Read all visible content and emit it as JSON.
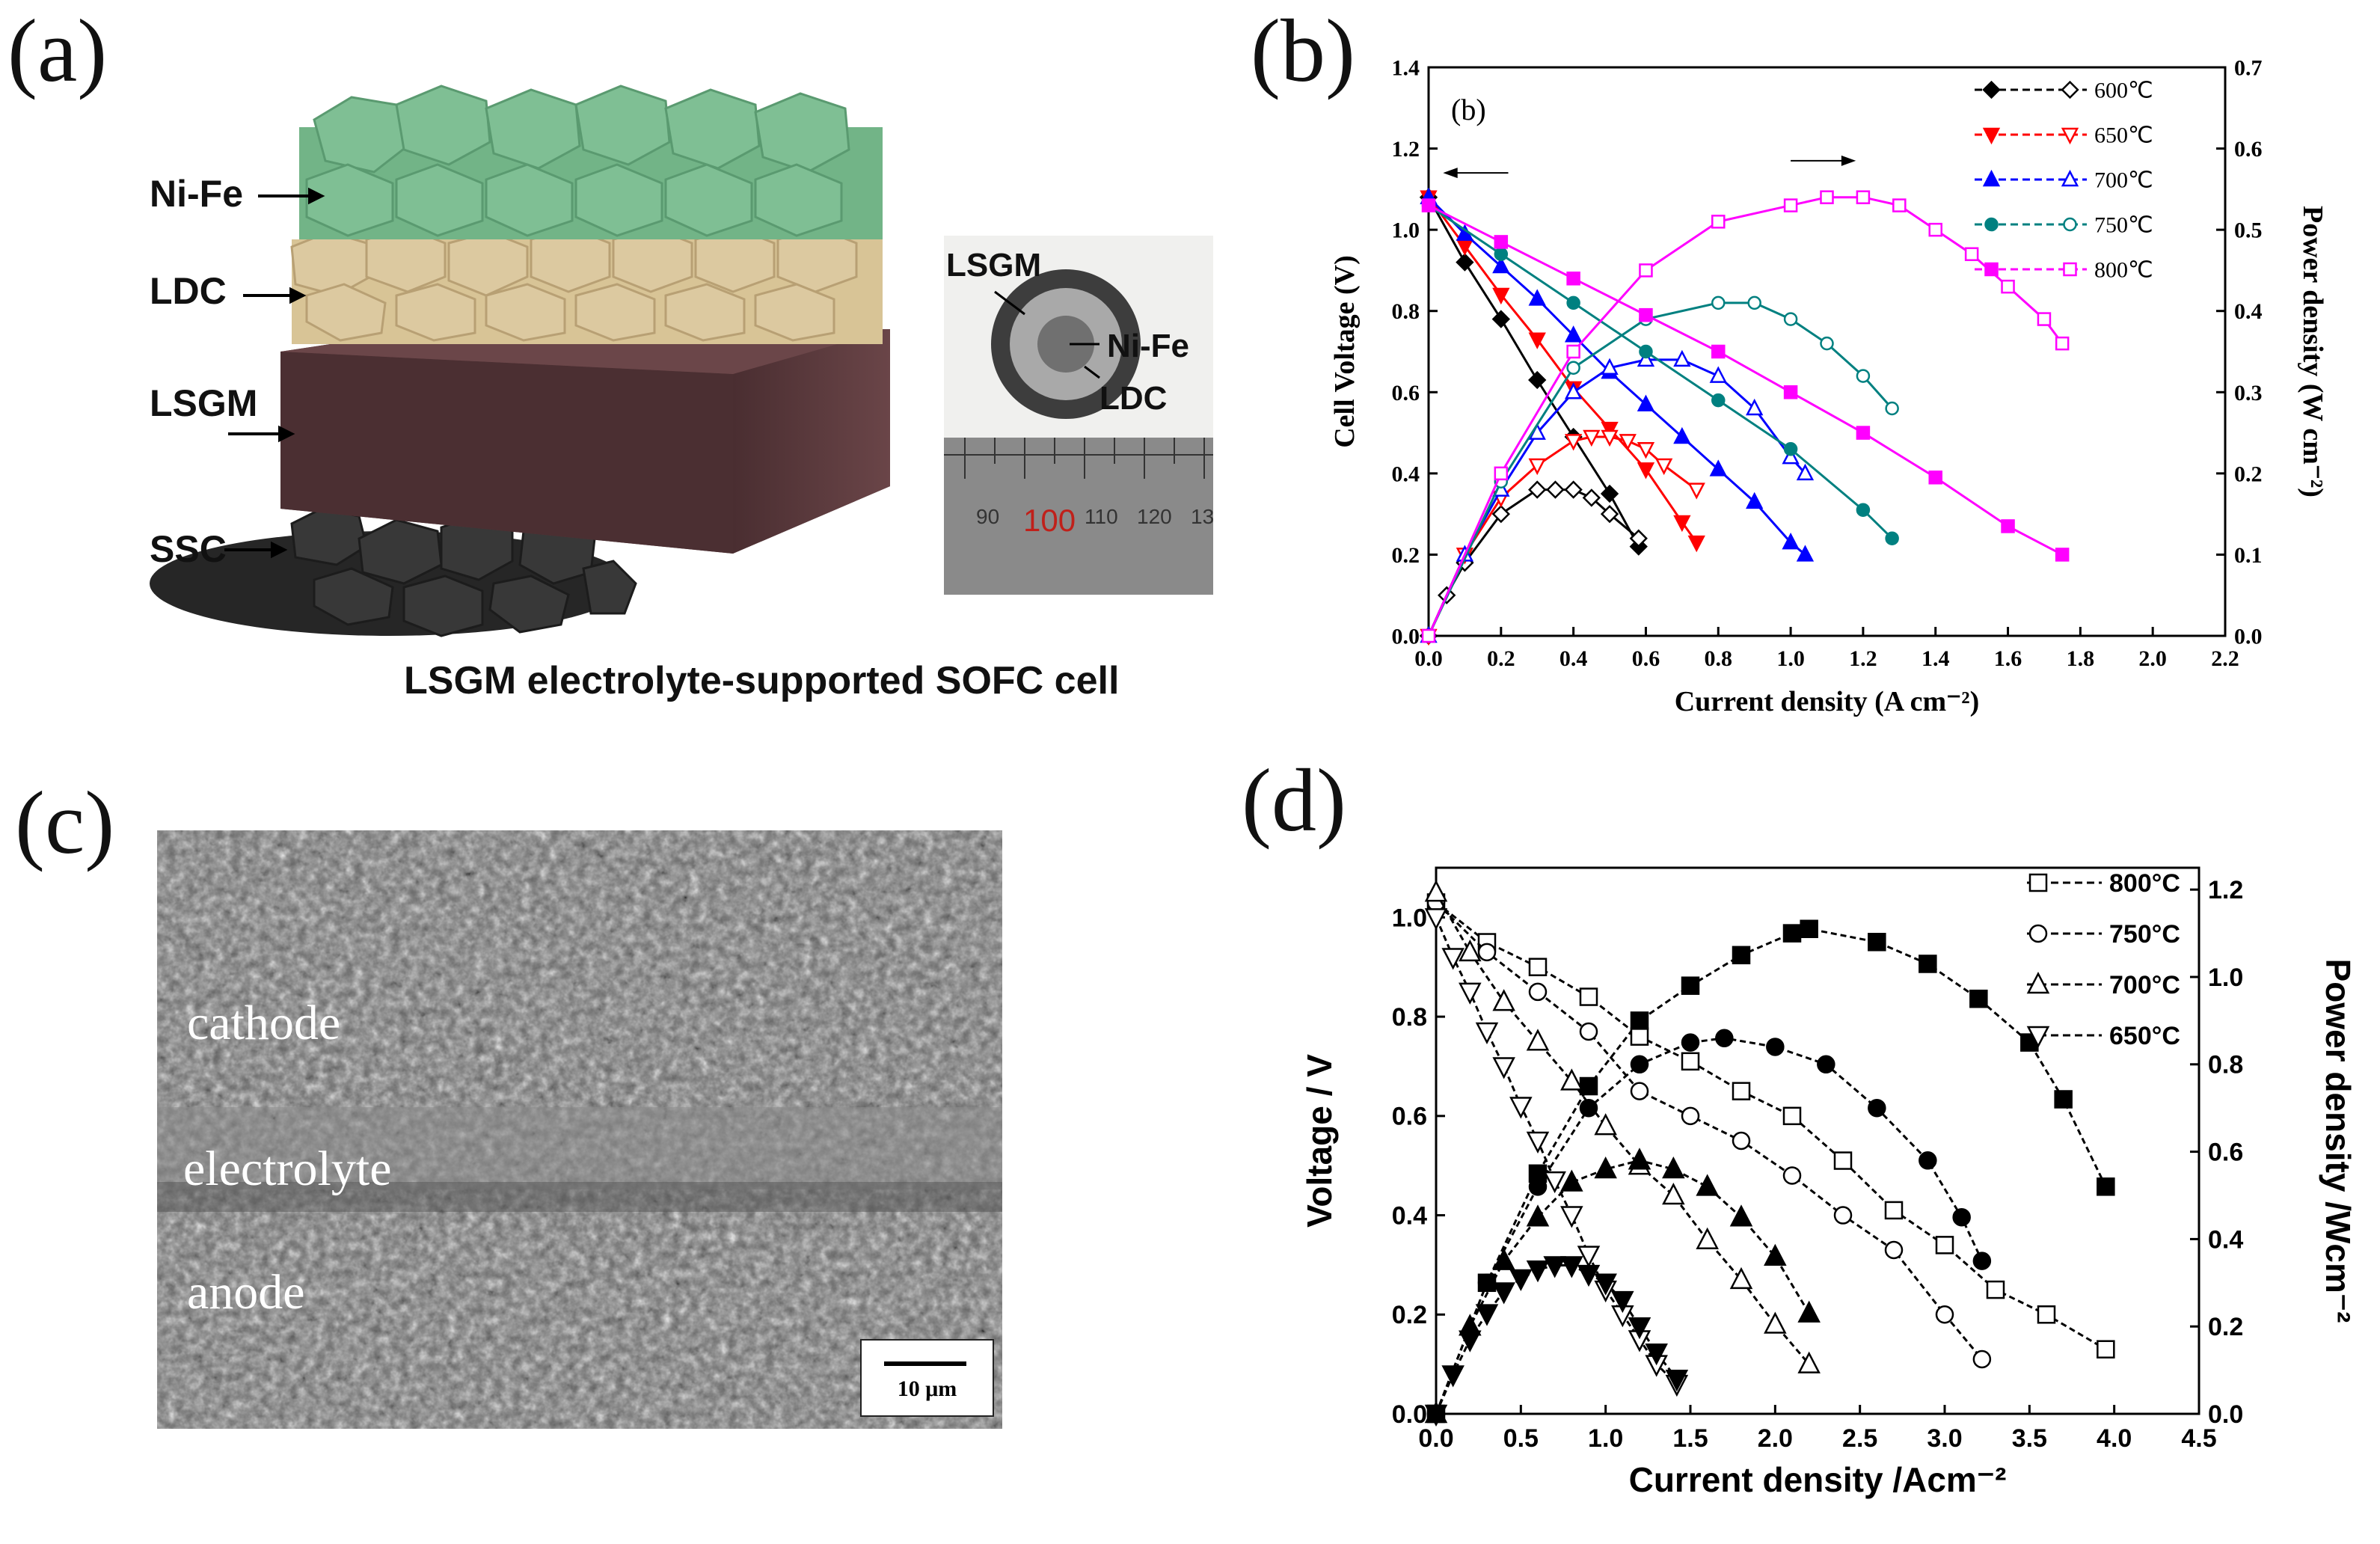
{
  "panels": {
    "a": "(a)",
    "b": "(b)",
    "c": "(c)",
    "d": "(d)"
  },
  "panel_a": {
    "layers": [
      "Ni-Fe",
      "LDC",
      "LSGM",
      "SSC"
    ],
    "photo_labels": [
      "LSGM",
      "Ni-Fe",
      "LDC"
    ],
    "ruler_labels": [
      "90",
      "100",
      "110",
      "120",
      "13"
    ],
    "caption": "LSGM electrolyte-supported SOFC cell",
    "colors": {
      "ni_fe": "#7fbf94",
      "ldc": "#dcc9a0",
      "lsgm": "#5a3a3c",
      "ssc": "#2e2e2e"
    }
  },
  "panel_c": {
    "labels": [
      "cathode",
      "electrolyte",
      "anode"
    ],
    "scale_text": "10 μm"
  },
  "chart_data": [
    {
      "id": "b",
      "type": "line",
      "inset_label": "(b)",
      "xlabel": "Current density (A cm⁻²)",
      "ylabel_left": "Cell Voltage (V)",
      "ylabel_right": "Power density (W cm⁻²)",
      "xlim": [
        0.0,
        2.2
      ],
      "ylim_left": [
        0.0,
        1.4
      ],
      "ylim_right": [
        0.0,
        0.7
      ],
      "xticks": [
        "0.0",
        "0.2",
        "0.4",
        "0.6",
        "0.8",
        "1.0",
        "1.2",
        "1.4",
        "1.6",
        "1.8",
        "2.0",
        "2.2"
      ],
      "yticks_left": [
        "0.0",
        "0.2",
        "0.4",
        "0.6",
        "0.8",
        "1.0",
        "1.2",
        "1.4"
      ],
      "yticks_right": [
        "0.0",
        "0.1",
        "0.2",
        "0.3",
        "0.4",
        "0.5",
        "0.6",
        "0.7"
      ],
      "legend_position": "top-right",
      "series": [
        {
          "name": "600℃",
          "color": "#000000",
          "marker": "diamond",
          "voltage": {
            "x": [
              0.0,
              0.1,
              0.2,
              0.3,
              0.4,
              0.5,
              0.58
            ],
            "y": [
              1.08,
              0.92,
              0.78,
              0.63,
              0.49,
              0.35,
              0.22
            ]
          },
          "power": {
            "x": [
              0.0,
              0.05,
              0.1,
              0.2,
              0.3,
              0.35,
              0.4,
              0.45,
              0.5,
              0.58
            ],
            "y": [
              0.0,
              0.05,
              0.09,
              0.15,
              0.18,
              0.18,
              0.18,
              0.17,
              0.15,
              0.12
            ]
          }
        },
        {
          "name": "650℃",
          "color": "#ff0000",
          "marker": "triangle-down",
          "voltage": {
            "x": [
              0.0,
              0.1,
              0.2,
              0.3,
              0.4,
              0.5,
              0.6,
              0.7,
              0.74
            ],
            "y": [
              1.08,
              0.96,
              0.84,
              0.73,
              0.61,
              0.51,
              0.41,
              0.28,
              0.23
            ]
          },
          "power": {
            "x": [
              0.0,
              0.1,
              0.2,
              0.3,
              0.4,
              0.45,
              0.5,
              0.55,
              0.6,
              0.65,
              0.74
            ],
            "y": [
              0.0,
              0.1,
              0.17,
              0.21,
              0.24,
              0.245,
              0.245,
              0.24,
              0.23,
              0.21,
              0.18
            ]
          }
        },
        {
          "name": "700℃",
          "color": "#0000ff",
          "marker": "triangle-up",
          "voltage": {
            "x": [
              0.0,
              0.1,
              0.2,
              0.3,
              0.4,
              0.5,
              0.6,
              0.7,
              0.8,
              0.9,
              1.0,
              1.04
            ],
            "y": [
              1.08,
              0.99,
              0.91,
              0.83,
              0.74,
              0.65,
              0.57,
              0.49,
              0.41,
              0.33,
              0.23,
              0.2
            ]
          },
          "power": {
            "x": [
              0.0,
              0.1,
              0.2,
              0.3,
              0.4,
              0.5,
              0.6,
              0.7,
              0.8,
              0.9,
              1.0,
              1.04
            ],
            "y": [
              0.0,
              0.1,
              0.18,
              0.25,
              0.3,
              0.33,
              0.34,
              0.34,
              0.32,
              0.28,
              0.22,
              0.2
            ]
          }
        },
        {
          "name": "750℃",
          "color": "#008080",
          "marker": "circle",
          "voltage": {
            "x": [
              0.0,
              0.2,
              0.4,
              0.6,
              0.8,
              1.0,
              1.2,
              1.28
            ],
            "y": [
              1.06,
              0.94,
              0.82,
              0.7,
              0.58,
              0.46,
              0.31,
              0.24
            ]
          },
          "power": {
            "x": [
              0.0,
              0.2,
              0.4,
              0.6,
              0.8,
              0.9,
              1.0,
              1.1,
              1.2,
              1.28
            ],
            "y": [
              0.0,
              0.19,
              0.33,
              0.39,
              0.41,
              0.41,
              0.39,
              0.36,
              0.32,
              0.28
            ]
          }
        },
        {
          "name": "800℃",
          "color": "#ff00ff",
          "marker": "square",
          "voltage": {
            "x": [
              0.0,
              0.2,
              0.4,
              0.6,
              0.8,
              1.0,
              1.2,
              1.4,
              1.6,
              1.75
            ],
            "y": [
              1.06,
              0.97,
              0.88,
              0.79,
              0.7,
              0.6,
              0.5,
              0.39,
              0.27,
              0.2
            ]
          },
          "power": {
            "x": [
              0.0,
              0.2,
              0.4,
              0.6,
              0.8,
              1.0,
              1.1,
              1.2,
              1.3,
              1.4,
              1.5,
              1.6,
              1.7,
              1.75
            ],
            "y": [
              0.0,
              0.2,
              0.35,
              0.45,
              0.51,
              0.53,
              0.54,
              0.54,
              0.53,
              0.5,
              0.47,
              0.43,
              0.39,
              0.36
            ]
          }
        }
      ]
    },
    {
      "id": "d",
      "type": "line",
      "xlabel": "Current density /Acm⁻²",
      "ylabel_left": "Voltage / V",
      "ylabel_right": "Power density /Wcm⁻²",
      "xlim": [
        0.0,
        4.5
      ],
      "ylim_left": [
        0.0,
        1.1
      ],
      "ylim_right": [
        0.0,
        1.25
      ],
      "xticks": [
        "0.0",
        "0.5",
        "1.0",
        "1.5",
        "2.0",
        "2.5",
        "3.0",
        "3.5",
        "4.0",
        "4.5"
      ],
      "yticks_left": [
        "0.0",
        "0.2",
        "0.4",
        "0.6",
        "0.8",
        "1.0"
      ],
      "yticks_right": [
        "0.0",
        "0.2",
        "0.4",
        "0.6",
        "0.8",
        "1.0",
        "1.2"
      ],
      "legend_position": "top-right",
      "series": [
        {
          "name": "800°C",
          "marker": "square",
          "voltage": {
            "x": [
              0.0,
              0.3,
              0.6,
              0.9,
              1.2,
              1.5,
              1.8,
              2.1,
              2.4,
              2.7,
              3.0,
              3.3,
              3.6,
              3.95
            ],
            "y": [
              1.03,
              0.95,
              0.9,
              0.84,
              0.76,
              0.71,
              0.65,
              0.6,
              0.51,
              0.41,
              0.34,
              0.25,
              0.2,
              0.13
            ]
          },
          "power": {
            "x": [
              0.0,
              0.3,
              0.6,
              0.9,
              1.2,
              1.5,
              1.8,
              2.1,
              2.2,
              2.6,
              2.9,
              3.2,
              3.5,
              3.7,
              3.95
            ],
            "y": [
              0.0,
              0.3,
              0.55,
              0.75,
              0.9,
              0.98,
              1.05,
              1.1,
              1.11,
              1.08,
              1.03,
              0.95,
              0.85,
              0.72,
              0.52
            ]
          }
        },
        {
          "name": "750°C",
          "marker": "circle",
          "voltage": {
            "x": [
              0.0,
              0.3,
              0.6,
              0.9,
              1.2,
              1.5,
              1.8,
              2.1,
              2.4,
              2.7,
              3.0,
              3.22
            ],
            "y": [
              1.03,
              0.93,
              0.85,
              0.77,
              0.65,
              0.6,
              0.55,
              0.48,
              0.4,
              0.33,
              0.2,
              0.11
            ]
          },
          "power": {
            "x": [
              0.0,
              0.3,
              0.6,
              0.9,
              1.2,
              1.5,
              1.7,
              2.0,
              2.3,
              2.6,
              2.9,
              3.1,
              3.22
            ],
            "y": [
              0.0,
              0.3,
              0.52,
              0.7,
              0.8,
              0.85,
              0.86,
              0.84,
              0.8,
              0.7,
              0.58,
              0.45,
              0.35
            ]
          }
        },
        {
          "name": "700°C",
          "marker": "triangle-up",
          "voltage": {
            "x": [
              0.0,
              0.2,
              0.4,
              0.6,
              0.8,
              1.0,
              1.2,
              1.4,
              1.6,
              1.8,
              2.0,
              2.2
            ],
            "y": [
              1.05,
              0.93,
              0.83,
              0.75,
              0.67,
              0.58,
              0.5,
              0.44,
              0.35,
              0.27,
              0.18,
              0.1
            ]
          },
          "power": {
            "x": [
              0.0,
              0.2,
              0.4,
              0.6,
              0.8,
              1.0,
              1.2,
              1.4,
              1.6,
              1.8,
              2.0,
              2.2
            ],
            "y": [
              0.0,
              0.2,
              0.35,
              0.45,
              0.53,
              0.56,
              0.58,
              0.56,
              0.52,
              0.45,
              0.36,
              0.23
            ]
          }
        },
        {
          "name": "650°C",
          "marker": "triangle-down",
          "voltage": {
            "x": [
              0.0,
              0.1,
              0.2,
              0.3,
              0.4,
              0.5,
              0.6,
              0.7,
              0.8,
              0.9,
              1.0,
              1.1,
              1.2,
              1.3,
              1.42
            ],
            "y": [
              1.0,
              0.92,
              0.85,
              0.77,
              0.7,
              0.62,
              0.55,
              0.47,
              0.4,
              0.32,
              0.25,
              0.2,
              0.15,
              0.1,
              0.06
            ]
          },
          "power": {
            "x": [
              0.0,
              0.1,
              0.2,
              0.3,
              0.4,
              0.5,
              0.6,
              0.7,
              0.8,
              0.9,
              1.0,
              1.1,
              1.2,
              1.3,
              1.42
            ],
            "y": [
              0.0,
              0.09,
              0.17,
              0.23,
              0.28,
              0.31,
              0.33,
              0.34,
              0.34,
              0.32,
              0.3,
              0.26,
              0.2,
              0.14,
              0.08
            ]
          }
        }
      ]
    }
  ]
}
